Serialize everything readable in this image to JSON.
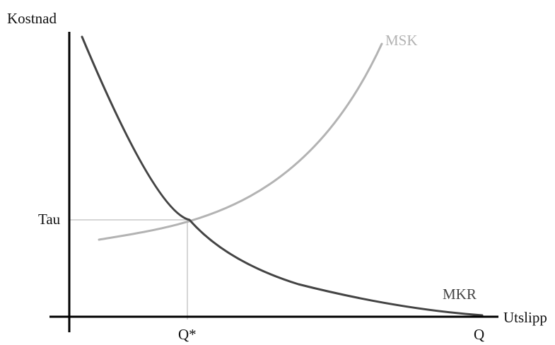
{
  "diagram": {
    "y_axis_label": "Kostnad",
    "x_axis_label": "Utslipp",
    "y_tick_label": "Tau",
    "x_tick_optimum": "Q*",
    "x_tick_end": "Q",
    "curves": [
      {
        "id": "msk",
        "label": "MSK",
        "color": "#b3b3b3",
        "shape": "increasing-convex"
      },
      {
        "id": "mkr",
        "label": "MKR",
        "color": "#444444",
        "shape": "decreasing-convex"
      }
    ],
    "guide_line_color": "#c8c8c8",
    "axis_color": "#000000"
  }
}
